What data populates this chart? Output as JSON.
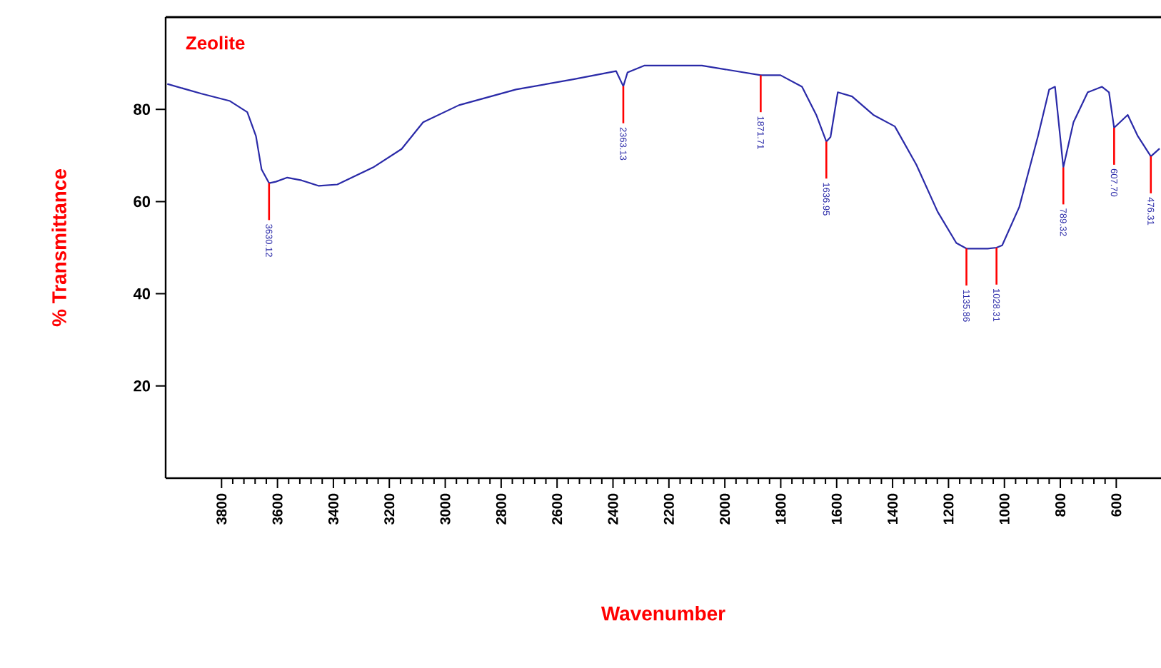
{
  "chart_data": {
    "type": "line",
    "title": "Zeolite",
    "xlabel": "Wavenumber",
    "ylabel": "% Transmittance",
    "x": [
      3994,
      3872,
      3770,
      3708,
      3677,
      3657,
      3630.12,
      3606,
      3565,
      3514,
      3452,
      3386,
      3258,
      3156,
      3079,
      2951,
      2747,
      2542,
      2389,
      2363.13,
      2348,
      2287,
      2082,
      1871.71,
      1801,
      1724,
      1673,
      1636.95,
      1622,
      1596,
      1545,
      1469,
      1392,
      1315,
      1239,
      1172,
      1135.86,
      1060,
      1028.31,
      1008,
      947,
      880,
      840,
      819,
      789.32,
      753,
      702,
      651,
      626,
      607.7,
      559,
      523,
      476.31,
      445
    ],
    "series": [
      {
        "color": "#2a2aa8",
        "values": [
          85.5,
          83.4,
          81.8,
          79.4,
          74.2,
          67,
          64,
          64.3,
          65.2,
          64.6,
          63.4,
          63.7,
          67.4,
          71.4,
          77.2,
          80.9,
          84.3,
          86.5,
          88.3,
          85,
          88,
          89.5,
          89.5,
          87.4,
          87.4,
          84.9,
          78.8,
          73,
          74,
          83.7,
          82.8,
          78.8,
          76.3,
          68,
          57.8,
          51,
          49.8,
          49.8,
          50,
          50.5,
          58.8,
          74.2,
          84.3,
          84.9,
          67.4,
          77.2,
          83.7,
          84.9,
          83.7,
          76,
          78.8,
          74.2,
          69.8,
          71.5
        ]
      }
    ],
    "xlim": [
      4000,
      440
    ],
    "ylim": [
      0,
      100
    ],
    "xticks": [
      3800,
      3600,
      3400,
      3200,
      3000,
      2800,
      2600,
      2400,
      2200,
      2000,
      1800,
      1600,
      1400,
      1200,
      1000,
      800,
      600
    ],
    "yticks": [
      20,
      40,
      60,
      80
    ],
    "marker": "none",
    "annotations": [
      {
        "text": "3630.12",
        "x": 3630.12,
        "y": 64
      },
      {
        "text": "2363.13",
        "x": 2363.13,
        "y": 85
      },
      {
        "text": "1871.71",
        "x": 1871.71,
        "y": 87.4
      },
      {
        "text": "1636.95",
        "x": 1636.95,
        "y": 73
      },
      {
        "text": "1135.86",
        "x": 1135.86,
        "y": 49.8
      },
      {
        "text": "1028.31",
        "x": 1028.31,
        "y": 50
      },
      {
        "text": "789.32",
        "x": 789.32,
        "y": 67.4
      },
      {
        "text": "607.70",
        "x": 607.7,
        "y": 76
      },
      {
        "text": "476.31",
        "x": 476.31,
        "y": 69.8
      }
    ]
  }
}
